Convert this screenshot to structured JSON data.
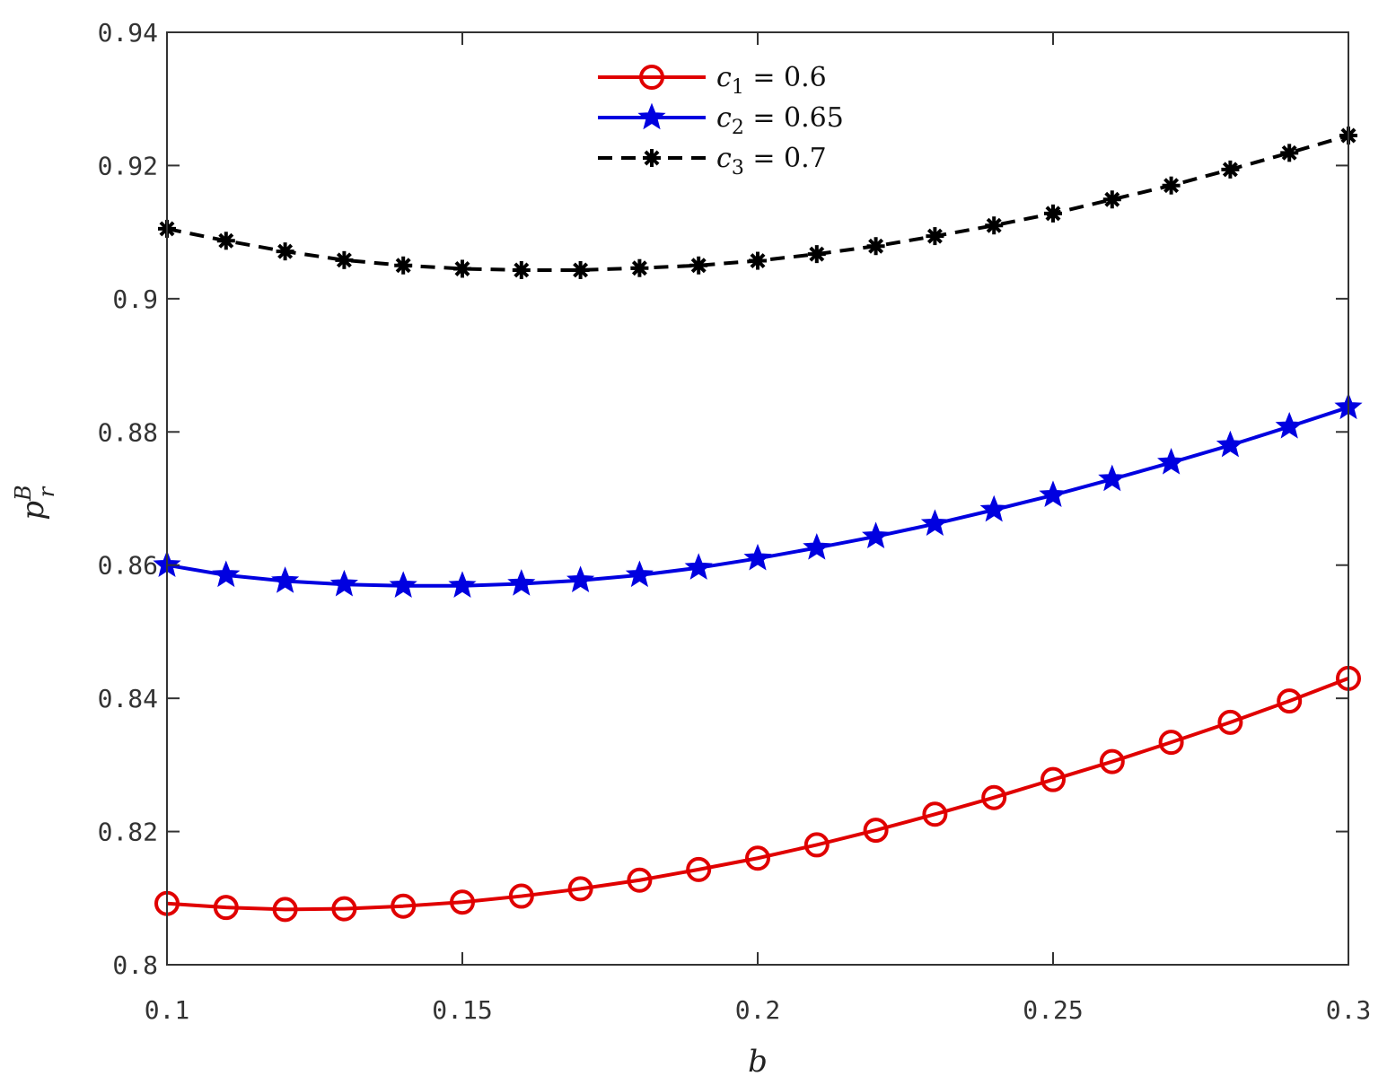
{
  "chart_data": {
    "type": "line",
    "title": "",
    "xlabel": "b",
    "ylabel": "p",
    "ylabel_sup": "B",
    "ylabel_sub": "r",
    "xlim": [
      0.1,
      0.3
    ],
    "ylim": [
      0.8,
      0.94
    ],
    "xticks": [
      0.1,
      0.15,
      0.2,
      0.25,
      0.3
    ],
    "xtick_labels": [
      "0.1",
      "0.15",
      "0.2",
      "0.25",
      "0.3"
    ],
    "yticks": [
      0.8,
      0.82,
      0.84,
      0.86,
      0.88,
      0.9,
      0.92,
      0.94
    ],
    "ytick_labels": [
      "0.8",
      "0.82",
      "0.84",
      "0.86",
      "0.88",
      "0.9",
      "0.92",
      "0.94"
    ],
    "grid": false,
    "legend_position": "top-center",
    "x": [
      0.1,
      0.11,
      0.12,
      0.13,
      0.14,
      0.15,
      0.16,
      0.17,
      0.18,
      0.19,
      0.2,
      0.21,
      0.22,
      0.23,
      0.24,
      0.25,
      0.26,
      0.27,
      0.28,
      0.29,
      0.3
    ],
    "series": [
      {
        "name": "c1 = 0.6",
        "label_var": "c",
        "label_sub": "1",
        "label_rest": " = 0.6",
        "color": "#e00000",
        "marker": "circle",
        "dash": "solid",
        "values": [
          0.8092,
          0.8086,
          0.8083,
          0.8084,
          0.8088,
          0.8094,
          0.8103,
          0.8114,
          0.8127,
          0.8143,
          0.816,
          0.818,
          0.8202,
          0.8226,
          0.8251,
          0.8278,
          0.8305,
          0.8334,
          0.8364,
          0.8396,
          0.843
        ]
      },
      {
        "name": "c2 = 0.65",
        "label_var": "c",
        "label_sub": "2",
        "label_rest": " = 0.65",
        "color": "#0000e0",
        "marker": "star",
        "dash": "solid",
        "values": [
          0.86,
          0.8585,
          0.8576,
          0.8571,
          0.8569,
          0.8569,
          0.8572,
          0.8577,
          0.8585,
          0.8596,
          0.861,
          0.8626,
          0.8643,
          0.8662,
          0.8683,
          0.8705,
          0.8729,
          0.8754,
          0.878,
          0.8808,
          0.8837
        ]
      },
      {
        "name": "c3 = 0.7",
        "label_var": "c",
        "label_sub": "3",
        "label_rest": " = 0.7",
        "color": "#000000",
        "marker": "asterisk",
        "dash": "dashed",
        "values": [
          0.9105,
          0.9087,
          0.9071,
          0.9058,
          0.905,
          0.9045,
          0.9043,
          0.9043,
          0.9046,
          0.905,
          0.9057,
          0.9067,
          0.9079,
          0.9094,
          0.911,
          0.9128,
          0.9149,
          0.917,
          0.9194,
          0.9219,
          0.9245
        ]
      }
    ]
  }
}
